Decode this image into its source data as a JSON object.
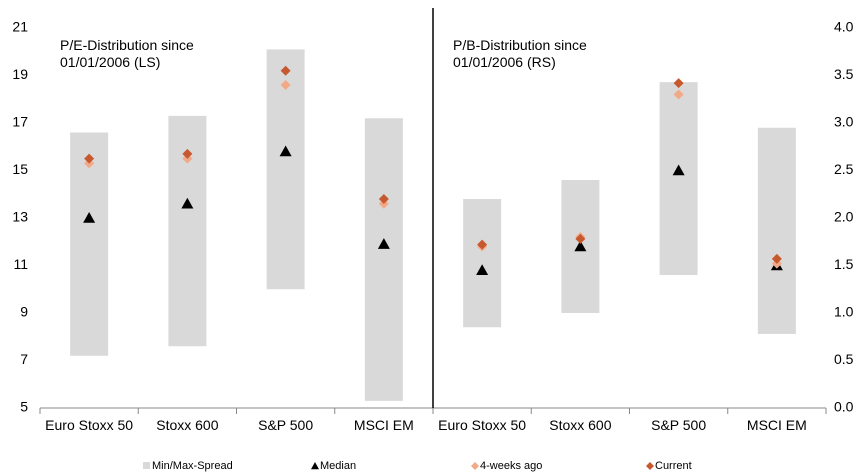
{
  "chart_data": [
    {
      "type": "range",
      "annotation": "P/E-Distribution since 01/01/2006 (LS)",
      "categories": [
        "Euro Stoxx 50",
        "Stoxx 600",
        "S&P 500",
        "MSCI EM"
      ],
      "ylim": [
        5,
        21
      ],
      "yticks": [
        5,
        7,
        9,
        11,
        13,
        15,
        17,
        19,
        21
      ],
      "series": [
        {
          "name": "Min/Max-Spread",
          "color": "#d9d9d9",
          "marker": "spread",
          "low": [
            7.2,
            7.6,
            10.0,
            5.3
          ],
          "values": [
            16.6,
            17.3,
            20.1,
            17.2
          ]
        },
        {
          "name": "Median",
          "color": "#000000",
          "marker": "triangle",
          "values": [
            13.0,
            13.6,
            15.8,
            11.9
          ]
        },
        {
          "name": "4-weeks ago",
          "color": "#f2a988",
          "marker": "diamond",
          "values": [
            15.3,
            15.5,
            18.6,
            13.6
          ]
        },
        {
          "name": "Current",
          "color": "#c65a2e",
          "marker": "diamond",
          "values": [
            15.5,
            15.7,
            19.2,
            13.8
          ]
        }
      ]
    },
    {
      "type": "range",
      "annotation": "P/B-Distribution since 01/01/2006 (RS)",
      "categories": [
        "Euro Stoxx 50",
        "Stoxx 600",
        "S&P 500",
        "MSCI EM"
      ],
      "y2lim": [
        0,
        4
      ],
      "y2ticks": [
        {
          "value": 0,
          "label": "0.0"
        },
        0.5,
        {
          "value": 1,
          "label": "1.0"
        },
        1.5,
        {
          "value": 2,
          "label": "2.0"
        },
        2.5,
        {
          "value": 3,
          "label": "3.0"
        },
        3.5,
        {
          "value": 4,
          "label": "4.0"
        }
      ],
      "series": [
        {
          "color": "#d9d9d9",
          "marker": "spread",
          "low": [
            0.85,
            1.0,
            1.4,
            0.78
          ],
          "values": [
            2.2,
            2.4,
            3.43,
            2.95
          ]
        },
        {
          "color": "#000000",
          "marker": "triangle",
          "values": [
            1.45,
            1.7,
            2.5,
            1.5
          ]
        },
        {
          "color": "#f2a988",
          "marker": "diamond",
          "values": [
            1.7,
            1.8,
            3.3,
            1.52
          ]
        },
        {
          "color": "#c65a2e",
          "marker": "diamond",
          "values": [
            1.72,
            1.78,
            3.42,
            1.57
          ]
        }
      ]
    }
  ]
}
